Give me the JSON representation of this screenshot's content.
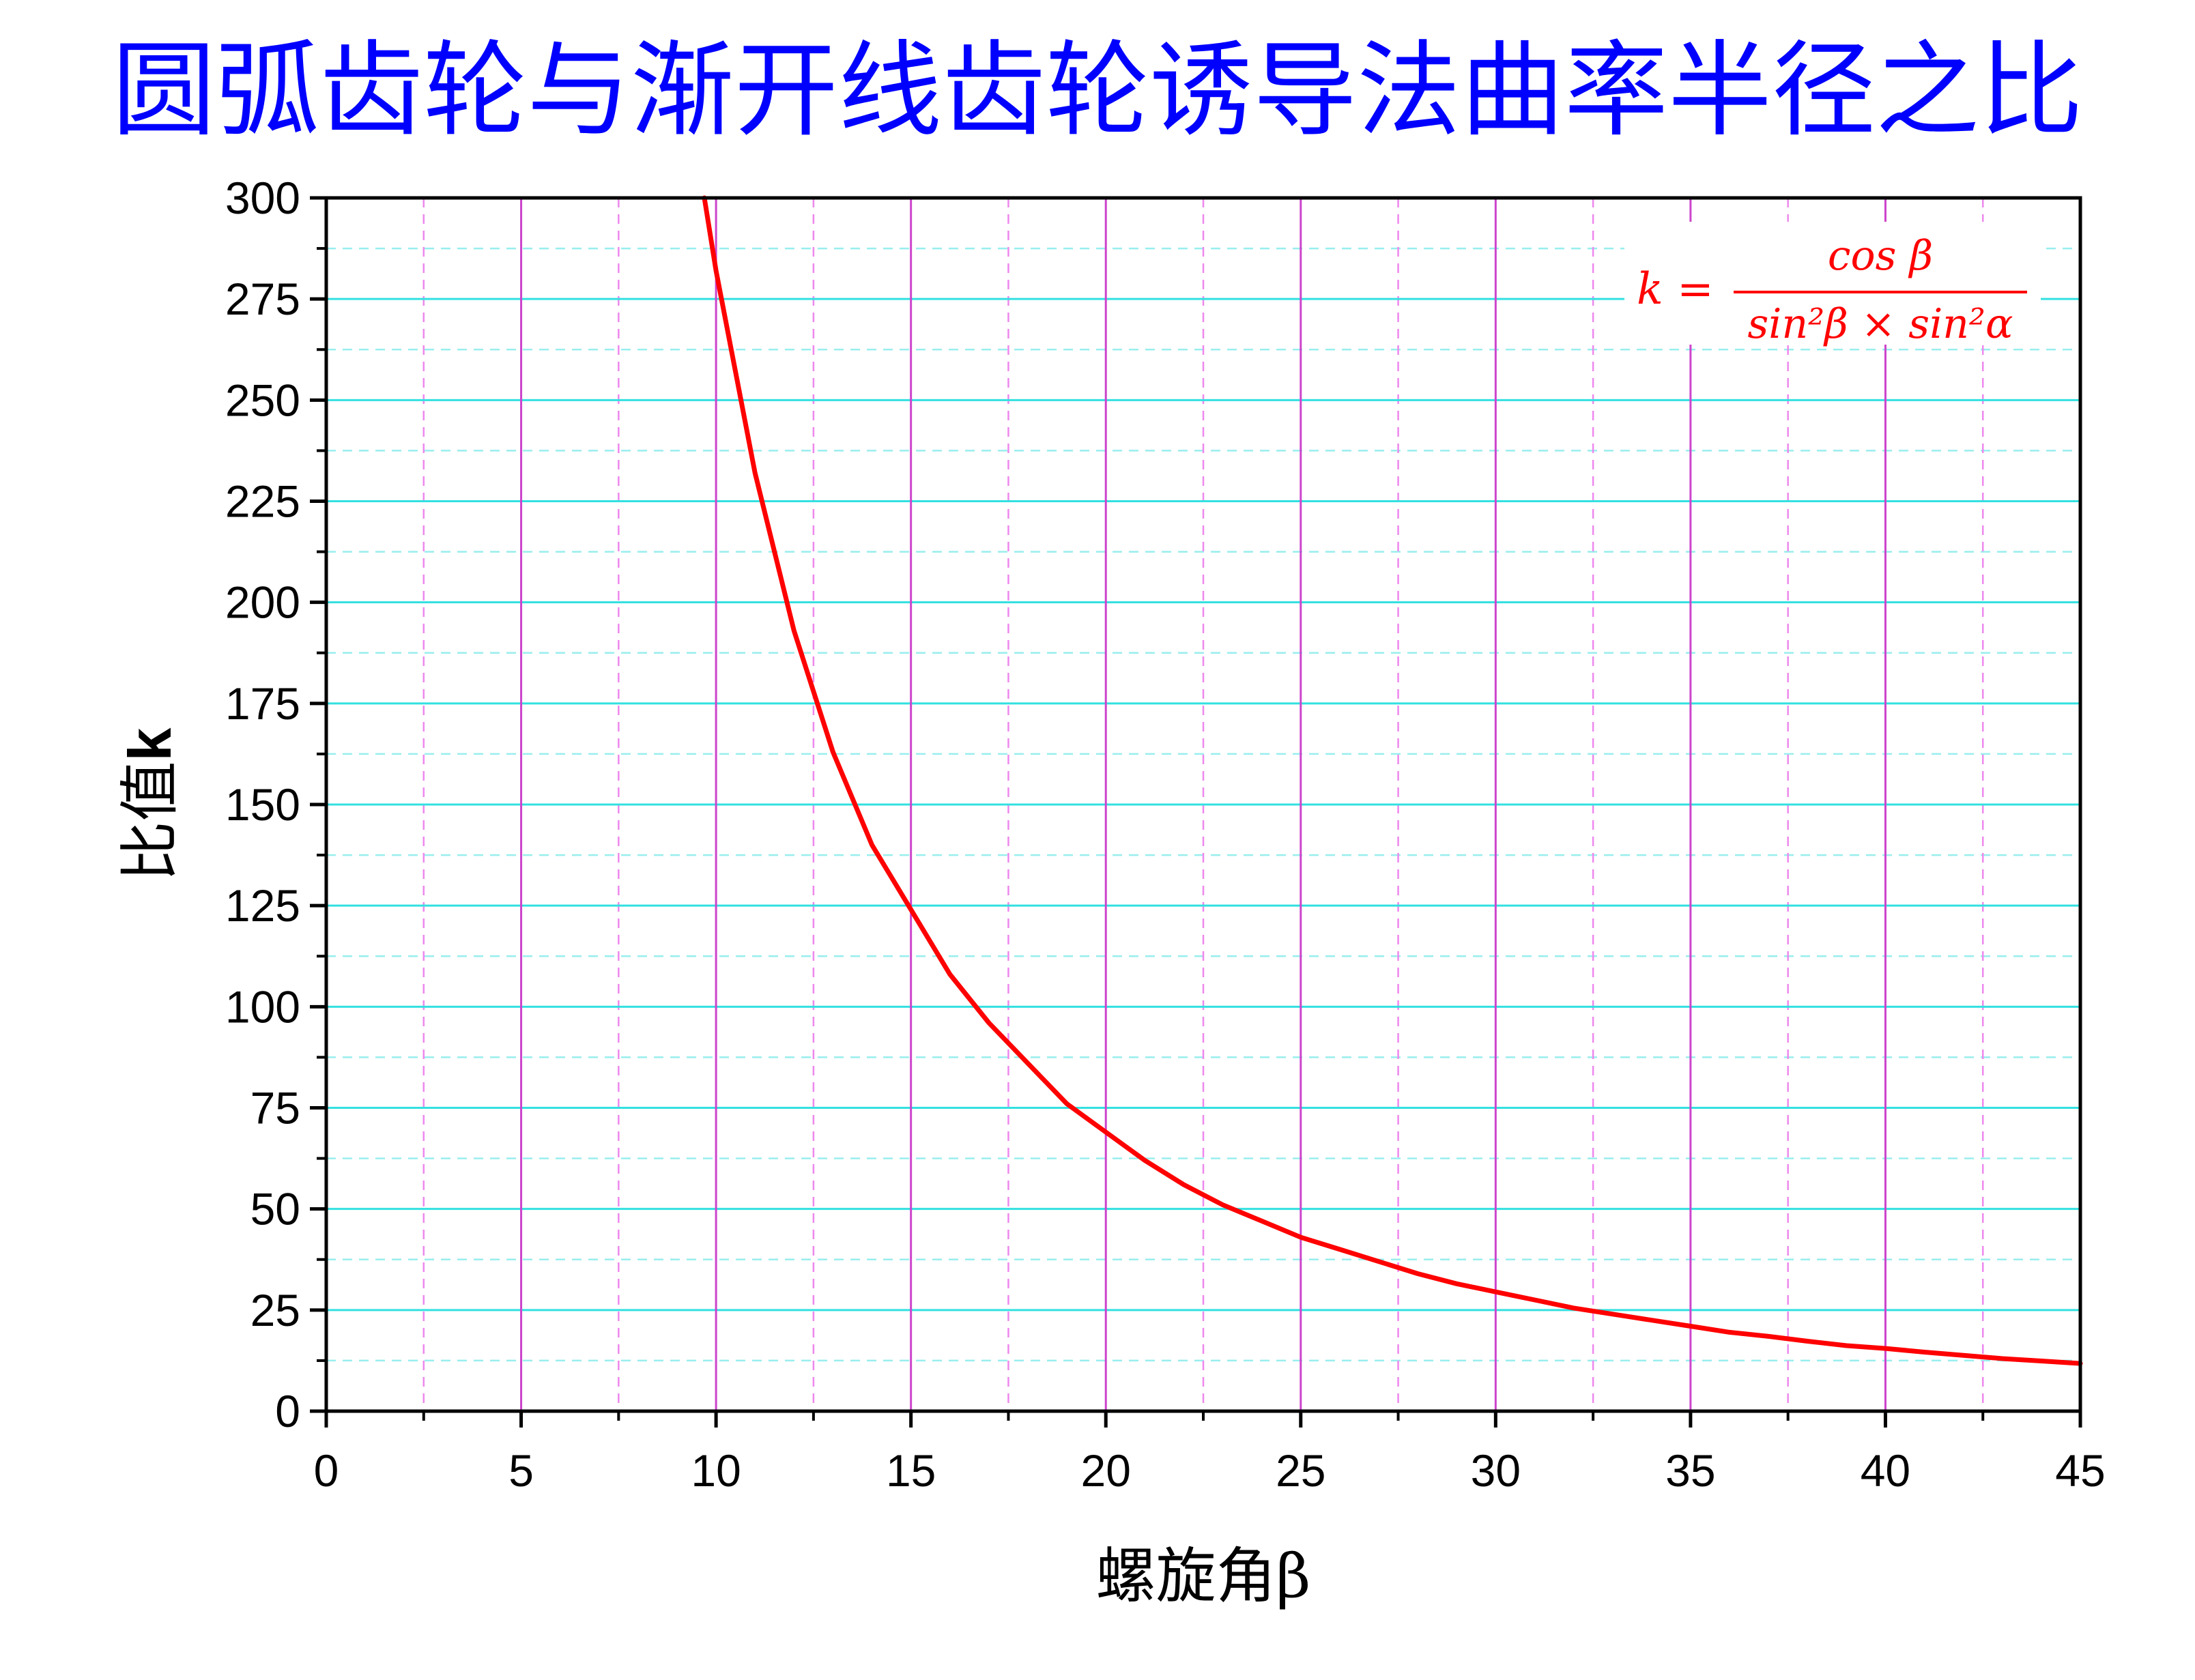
{
  "chart_data": {
    "type": "line",
    "title": "圆弧齿轮与渐开线齿轮诱导法曲率半径之比",
    "xlabel": "螺旋角β",
    "ylabel_prefix": "比值",
    "ylabel_var": "k",
    "xlim": [
      0,
      45
    ],
    "ylim": [
      0,
      300
    ],
    "x_major_ticks": [
      0,
      5,
      10,
      15,
      20,
      25,
      30,
      35,
      40,
      45
    ],
    "x_tick_labels": [
      "0",
      "5",
      "10",
      "15",
      "20",
      "25",
      "30",
      "35",
      "40",
      "45"
    ],
    "x_minor_ticks": [
      2.5,
      7.5,
      12.5,
      17.5,
      22.5,
      27.5,
      32.5,
      37.5,
      42.5
    ],
    "y_major_ticks": [
      0,
      25,
      50,
      75,
      100,
      125,
      150,
      175,
      200,
      225,
      250,
      275,
      300
    ],
    "y_tick_labels": [
      "0",
      "25",
      "50",
      "75",
      "100",
      "125",
      "150",
      "175",
      "200",
      "225",
      "250",
      "275",
      "300"
    ],
    "y_minor_ticks": [
      12.5,
      37.5,
      62.5,
      87.5,
      112.5,
      137.5,
      162.5,
      187.5,
      212.5,
      237.5,
      262.5,
      287.5
    ],
    "grid": true,
    "series": [
      {
        "color": "#ff0000",
        "x": [
          9.7,
          10,
          11,
          12,
          13,
          14,
          15,
          16,
          17,
          18,
          19,
          20,
          21,
          22,
          23,
          24,
          25,
          26,
          27,
          28,
          29,
          30,
          31,
          32,
          33,
          34,
          35,
          36,
          37,
          38,
          39,
          40,
          41,
          42,
          43,
          44,
          45
        ],
        "y": [
          300,
          282,
          232,
          193,
          163,
          140,
          124,
          108,
          96,
          86,
          76,
          69,
          62,
          56,
          51,
          47,
          43,
          40,
          37,
          34,
          31.5,
          29.5,
          27.5,
          25.5,
          24,
          22.5,
          21,
          19.5,
          18.5,
          17.3,
          16.2,
          15.5,
          14.6,
          13.8,
          13,
          12.4,
          11.8
        ]
      }
    ],
    "annotation": {
      "lhs": "k =",
      "numerator": "cos β",
      "denominator": "sin²β × sin²α",
      "color": "#ff0000",
      "placement": "top-right"
    }
  },
  "colors": {
    "title": "#0000ff",
    "major_x_grid": "#cc44cc",
    "minor_x_grid": "#ee88ee",
    "major_y_grid": "#33e0e0",
    "minor_y_grid": "#99eeee",
    "axis": "#000000"
  }
}
